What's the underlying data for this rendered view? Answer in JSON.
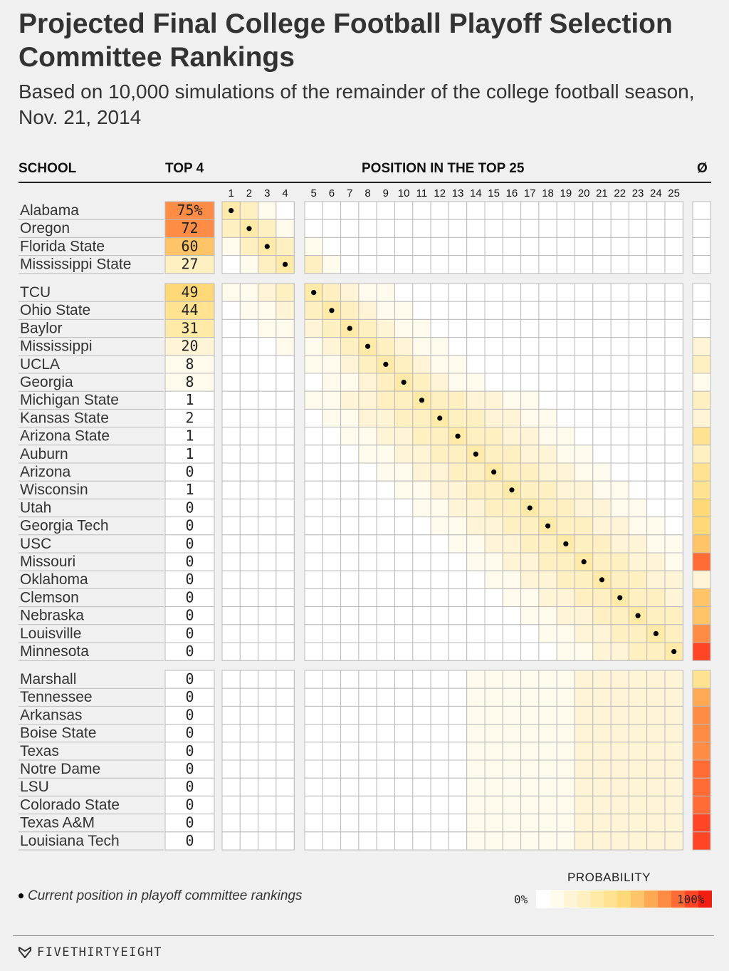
{
  "title": "Projected Final College Football Playoff Selection Committee Rankings",
  "subtitle": "Based on 10,000 simulations of the remainder of the college football season, Nov. 21, 2014",
  "headers": {
    "school": "SCHOOL",
    "top4": "TOP 4",
    "positions": "POSITION IN THE TOP 25",
    "out": "Ø"
  },
  "legend": {
    "dot_note": "Current position in playoff committee rankings",
    "probability_title": "PROBABILITY",
    "min_label": "0%",
    "max_label": "100%"
  },
  "brand": "FIVETHIRTYEIGHT",
  "chart_data": {
    "type": "heatmap",
    "position_labels": [
      "1",
      "2",
      "3",
      "4",
      "5",
      "6",
      "7",
      "8",
      "9",
      "10",
      "11",
      "12",
      "13",
      "14",
      "15",
      "16",
      "17",
      "18",
      "19",
      "20",
      "21",
      "22",
      "23",
      "24",
      "25"
    ],
    "groups": [
      {
        "rows": [
          {
            "school": "Alabama",
            "top4": "75%",
            "current": 1
          },
          {
            "school": "Oregon",
            "top4": "72",
            "current": 2
          },
          {
            "school": "Florida State",
            "top4": "60",
            "current": 3
          },
          {
            "school": "Mississippi State",
            "top4": "27",
            "current": 4
          }
        ]
      },
      {
        "rows": [
          {
            "school": "TCU",
            "top4": "49",
            "current": 5
          },
          {
            "school": "Ohio State",
            "top4": "44",
            "current": 6
          },
          {
            "school": "Baylor",
            "top4": "31",
            "current": 7
          },
          {
            "school": "Mississippi",
            "top4": "20",
            "current": 8
          },
          {
            "school": "UCLA",
            "top4": "8",
            "current": 9
          },
          {
            "school": "Georgia",
            "top4": "8",
            "current": 10
          },
          {
            "school": "Michigan State",
            "top4": "1",
            "current": 11
          },
          {
            "school": "Kansas State",
            "top4": "2",
            "current": 12
          },
          {
            "school": "Arizona State",
            "top4": "1",
            "current": 13
          },
          {
            "school": "Auburn",
            "top4": "1",
            "current": 14
          },
          {
            "school": "Arizona",
            "top4": "0",
            "current": 15
          },
          {
            "school": "Wisconsin",
            "top4": "1",
            "current": 16
          },
          {
            "school": "Utah",
            "top4": "0",
            "current": 17
          },
          {
            "school": "Georgia Tech",
            "top4": "0",
            "current": 18
          },
          {
            "school": "USC",
            "top4": "0",
            "current": 19
          },
          {
            "school": "Missouri",
            "top4": "0",
            "current": 20
          },
          {
            "school": "Oklahoma",
            "top4": "0",
            "current": 21
          },
          {
            "school": "Clemson",
            "top4": "0",
            "current": 22
          },
          {
            "school": "Nebraska",
            "top4": "0",
            "current": 23
          },
          {
            "school": "Louisville",
            "top4": "0",
            "current": 24
          },
          {
            "school": "Minnesota",
            "top4": "0",
            "current": 25
          }
        ]
      },
      {
        "rows": [
          {
            "school": "Marshall",
            "top4": "0",
            "current": null
          },
          {
            "school": "Tennessee",
            "top4": "0",
            "current": null
          },
          {
            "school": "Arkansas",
            "top4": "0",
            "current": null
          },
          {
            "school": "Boise State",
            "top4": "0",
            "current": null
          },
          {
            "school": "Texas",
            "top4": "0",
            "current": null
          },
          {
            "school": "Notre Dame",
            "top4": "0",
            "current": null
          },
          {
            "school": "LSU",
            "top4": "0",
            "current": null
          },
          {
            "school": "Colorado State",
            "top4": "0",
            "current": null
          },
          {
            "school": "Texas A&M",
            "top4": "0",
            "current": null
          },
          {
            "school": "Louisiana Tech",
            "top4": "0",
            "current": null
          }
        ]
      }
    ],
    "out_probability": [
      0,
      0,
      0,
      0,
      0,
      2,
      3,
      18,
      25,
      8,
      22,
      15,
      45,
      28,
      42,
      40,
      48,
      52,
      62,
      80,
      20,
      55,
      62,
      75,
      90,
      40,
      70,
      75,
      78,
      78,
      82,
      82,
      85,
      88,
      92
    ],
    "top4_probability": [
      75,
      72,
      60,
      27,
      49,
      44,
      31,
      20,
      8,
      8,
      1,
      2,
      1,
      1,
      0,
      1,
      0,
      0,
      0,
      0,
      0,
      0,
      0,
      0,
      0,
      0,
      0,
      0,
      0,
      0,
      0,
      0,
      0,
      0,
      0
    ],
    "probability_scale_colors": [
      "#ffffff",
      "#fffbec",
      "#fff5d6",
      "#fff0c2",
      "#ffeaa8",
      "#ffe390",
      "#ffd978",
      "#ffc467",
      "#ffa955",
      "#ff8c44",
      "#ff6a35",
      "#ff4526",
      "#f21e12"
    ],
    "value_scale": [
      0,
      100
    ]
  }
}
